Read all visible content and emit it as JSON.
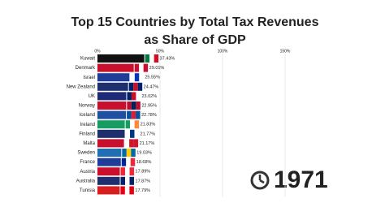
{
  "chart_data": {
    "type": "barh",
    "title": "Top 15 Countries by Total Tax Revenues",
    "subtitle": "as Share of GDP",
    "annotation": "1971",
    "categories": [
      "Kuwait",
      "Denmark",
      "Israel",
      "New Zealand",
      "UK",
      "Norway",
      "Iceland",
      "Ireland",
      "Finland",
      "Malta",
      "Sweden",
      "France",
      "Austria",
      "Australia",
      "Tunisia"
    ],
    "values": [
      37.43,
      29.01,
      25.55,
      24.47,
      23.02,
      22.95,
      22.78,
      21.83,
      21.77,
      21.17,
      19.03,
      18.68,
      17.89,
      17.87,
      17.79
    ],
    "value_labels": [
      "37.43%",
      "29.01%",
      "25.55%",
      "24.47%",
      "23.02%",
      "22.95%",
      "22.78%",
      "21.83%",
      "21.77%",
      "21.17%",
      "19.03%",
      "18.68%",
      "17.89%",
      "17.87%",
      "17.79%"
    ],
    "colors": [
      "#111111",
      "#c8102e",
      "#1f3c99",
      "#1f2f6e",
      "#1e2a78",
      "#c8102e",
      "#1f4fa0",
      "#169b62",
      "#1f2f6e",
      "#c8102e",
      "#1f6fb5",
      "#1f3c99",
      "#c8102e",
      "#1f2f6e",
      "#d81e1e"
    ],
    "xlim": [
      0,
      150
    ],
    "xticks": [
      {
        "value": 0,
        "label": "0%"
      },
      {
        "value": 50,
        "label": "50%"
      },
      {
        "value": 100,
        "label": "100%"
      },
      {
        "value": 150,
        "label": "150%"
      }
    ],
    "grid": true
  }
}
